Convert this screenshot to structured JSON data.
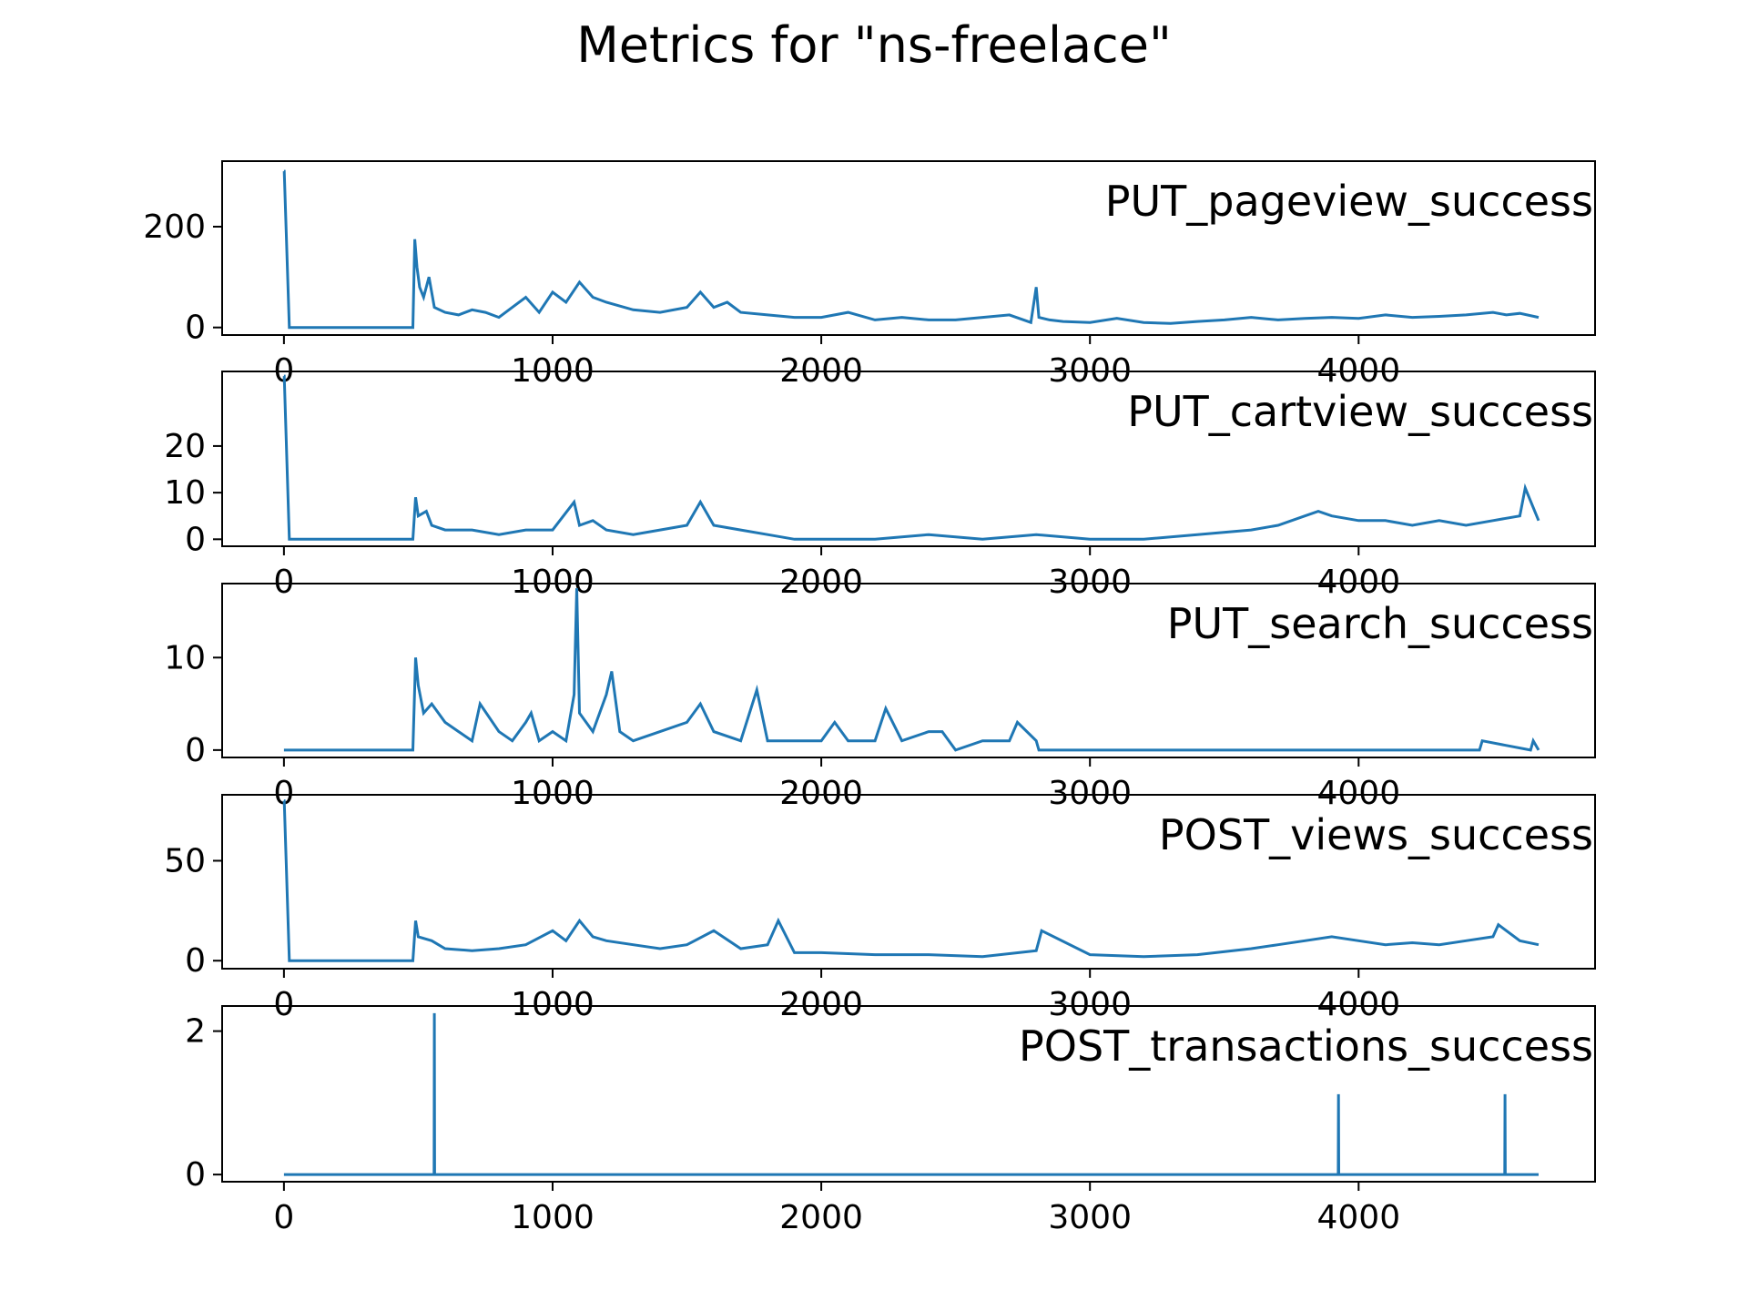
{
  "figure": {
    "title": "Metrics for \"ns-freelace\""
  },
  "colors": {
    "line": "#1f77b4",
    "axes": "#000000",
    "background": "#ffffff"
  },
  "chart_data": [
    {
      "type": "line",
      "label": "PUT_pageview_success",
      "xlim": [
        -230,
        4880
      ],
      "ylim": [
        -15,
        330
      ],
      "xticks": [
        0,
        1000,
        2000,
        3000,
        4000
      ],
      "yticks": [
        0,
        200
      ],
      "x": [
        0,
        1,
        20,
        470,
        480,
        487,
        495,
        505,
        520,
        540,
        560,
        600,
        650,
        700,
        750,
        800,
        850,
        900,
        950,
        1000,
        1050,
        1100,
        1150,
        1200,
        1300,
        1400,
        1500,
        1550,
        1600,
        1650,
        1700,
        1800,
        1900,
        2000,
        2100,
        2200,
        2300,
        2400,
        2500,
        2600,
        2700,
        2780,
        2800,
        2810,
        2850,
        2900,
        3000,
        3100,
        3200,
        3300,
        3400,
        3500,
        3600,
        3700,
        3800,
        3900,
        4000,
        4100,
        4200,
        4300,
        4400,
        4500,
        4550,
        4600,
        4670
      ],
      "values": [
        310,
        310,
        0,
        0,
        0,
        175,
        120,
        80,
        60,
        100,
        40,
        30,
        25,
        35,
        30,
        20,
        40,
        60,
        30,
        70,
        50,
        90,
        60,
        50,
        35,
        30,
        40,
        70,
        40,
        50,
        30,
        25,
        20,
        20,
        30,
        15,
        20,
        15,
        15,
        20,
        25,
        10,
        80,
        20,
        15,
        12,
        10,
        18,
        10,
        8,
        12,
        15,
        20,
        15,
        18,
        20,
        18,
        25,
        20,
        22,
        25,
        30,
        25,
        28,
        20
      ]
    },
    {
      "type": "line",
      "label": "PUT_cartview_success",
      "xlim": [
        -230,
        4880
      ],
      "ylim": [
        -1.5,
        36
      ],
      "xticks": [
        0,
        1000,
        2000,
        3000,
        4000
      ],
      "yticks": [
        0,
        10,
        20
      ],
      "x": [
        0,
        1,
        20,
        480,
        490,
        500,
        530,
        550,
        600,
        700,
        800,
        900,
        1000,
        1080,
        1100,
        1150,
        1200,
        1300,
        1400,
        1500,
        1550,
        1600,
        1700,
        1800,
        1900,
        2000,
        2200,
        2400,
        2600,
        2800,
        3000,
        3200,
        3400,
        3600,
        3700,
        3800,
        3850,
        3900,
        4000,
        4100,
        4200,
        4300,
        4400,
        4500,
        4600,
        4620,
        4670
      ],
      "values": [
        35,
        35,
        0,
        0,
        9,
        5,
        6,
        3,
        2,
        2,
        1,
        2,
        2,
        8,
        3,
        4,
        2,
        1,
        2,
        3,
        8,
        3,
        2,
        1,
        0,
        0,
        0,
        1,
        0,
        1,
        0,
        0,
        1,
        2,
        3,
        5,
        6,
        5,
        4,
        4,
        3,
        4,
        3,
        4,
        5,
        11,
        4
      ]
    },
    {
      "type": "line",
      "label": "PUT_search_success",
      "xlim": [
        -230,
        4880
      ],
      "ylim": [
        -0.8,
        18
      ],
      "xticks": [
        0,
        1000,
        2000,
        3000,
        4000
      ],
      "yticks": [
        0,
        10
      ],
      "x": [
        0,
        480,
        490,
        500,
        520,
        550,
        600,
        650,
        700,
        730,
        800,
        850,
        900,
        920,
        950,
        1000,
        1050,
        1080,
        1090,
        1100,
        1150,
        1200,
        1220,
        1250,
        1300,
        1400,
        1500,
        1550,
        1600,
        1700,
        1760,
        1800,
        1900,
        2000,
        2050,
        2100,
        2200,
        2240,
        2300,
        2400,
        2450,
        2500,
        2600,
        2700,
        2730,
        2800,
        2810,
        3000,
        4000,
        4450,
        4460,
        4640,
        4650,
        4670
      ],
      "values": [
        0,
        0,
        10,
        7,
        4,
        5,
        3,
        2,
        1,
        5,
        2,
        1,
        3,
        4,
        1,
        2,
        1,
        6,
        17.5,
        4,
        2,
        6,
        8.5,
        2,
        1,
        2,
        3,
        5,
        2,
        1,
        6.5,
        1,
        1,
        1,
        3,
        1,
        1,
        4.5,
        1,
        2,
        2,
        0,
        1,
        1,
        3,
        1,
        0,
        0,
        0,
        0,
        1,
        0,
        1,
        0
      ]
    },
    {
      "type": "line",
      "label": "POST_views_success",
      "xlim": [
        -230,
        4880
      ],
      "ylim": [
        -4,
        83
      ],
      "xticks": [
        0,
        1000,
        2000,
        3000,
        4000
      ],
      "yticks": [
        0,
        50
      ],
      "x": [
        0,
        1,
        20,
        480,
        490,
        500,
        550,
        600,
        700,
        800,
        900,
        1000,
        1050,
        1100,
        1150,
        1200,
        1300,
        1400,
        1500,
        1600,
        1700,
        1800,
        1840,
        1900,
        2000,
        2200,
        2400,
        2600,
        2800,
        2820,
        3000,
        3200,
        3400,
        3600,
        3700,
        3800,
        3900,
        4000,
        4100,
        4200,
        4300,
        4400,
        4500,
        4520,
        4600,
        4670
      ],
      "values": [
        80,
        80,
        0,
        0,
        20,
        12,
        10,
        6,
        5,
        6,
        8,
        15,
        10,
        20,
        12,
        10,
        8,
        6,
        8,
        15,
        6,
        8,
        20,
        4,
        4,
        3,
        3,
        2,
        5,
        15,
        3,
        2,
        3,
        6,
        8,
        10,
        12,
        10,
        8,
        9,
        8,
        10,
        12,
        18,
        10,
        8
      ]
    },
    {
      "type": "line",
      "label": "POST_transactions_success",
      "xlim": [
        -230,
        4880
      ],
      "ylim": [
        -0.1,
        2.35
      ],
      "xticks": [
        0,
        1000,
        2000,
        3000,
        4000
      ],
      "yticks": [
        0,
        2
      ],
      "x": [
        0,
        559,
        560,
        561,
        3924,
        3925,
        3926,
        4544,
        4545,
        4546,
        4670
      ],
      "values": [
        0,
        0,
        2.25,
        0,
        0,
        1.12,
        0,
        0,
        1.12,
        0,
        0
      ]
    }
  ]
}
